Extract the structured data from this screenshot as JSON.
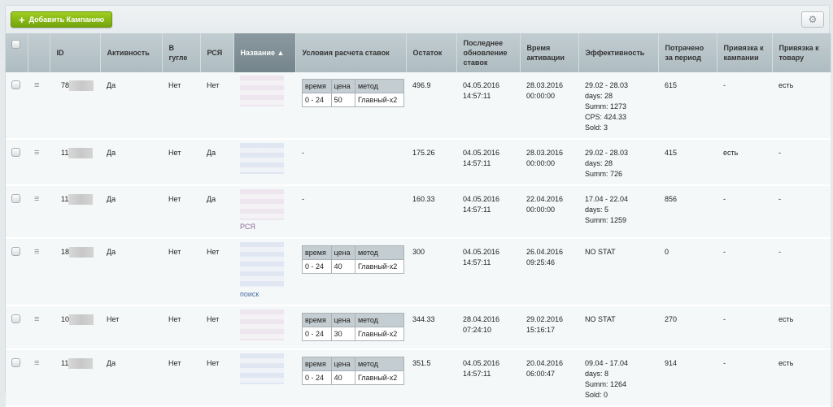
{
  "toolbar": {
    "add_label": "Добавить Кампанию",
    "add_icon": "plus-icon",
    "settings_icon": "gear-icon"
  },
  "columns": [
    "",
    "",
    "ID",
    "Активность",
    "В гугле",
    "РСЯ",
    "Название",
    "Условия расчета ставок",
    "Остаток",
    "Последнее обновление ставок",
    "Время активации",
    "Эффективность",
    "Потрачено за период",
    "Привязка к кампании",
    "Привязка к товару"
  ],
  "sorted_column": "Название",
  "sort_indicator": "▲",
  "bid_headers": [
    "время",
    "цена",
    "метод"
  ],
  "rows": [
    {
      "id": "78",
      "active": "Да",
      "google": "Нет",
      "rsya": "Нет",
      "name_sub": "",
      "bid": [
        "0 - 24",
        "50",
        "Главный-x2"
      ],
      "rest": "496.9",
      "updated": [
        "04.05.2016",
        "14:57:11"
      ],
      "activated": [
        "28.03.2016",
        "00:00:00"
      ],
      "eff": [
        "29.02 - 28.03",
        "days: 28",
        "Summ: 1273",
        "CPS: 424.33",
        "Sold: 3"
      ],
      "spent": "615",
      "link_campaign": "-",
      "link_product": "есть"
    },
    {
      "id": "11",
      "active": "Да",
      "google": "Нет",
      "rsya": "Да",
      "name_sub": "",
      "bid": null,
      "bid_text": "-",
      "rest": "175.26",
      "updated": [
        "04.05.2016",
        "14:57:11"
      ],
      "activated": [
        "28.03.2016",
        "00:00:00"
      ],
      "eff": [
        "29.02 - 28.03",
        "days: 28",
        "Summ: 726"
      ],
      "spent": "415",
      "link_campaign": "есть",
      "link_product": "-"
    },
    {
      "id": "11",
      "active": "Да",
      "google": "Нет",
      "rsya": "Да",
      "name_sub": "РСЯ",
      "bid": null,
      "bid_text": "-",
      "rest": "160.33",
      "updated": [
        "04.05.2016",
        "14:57:11"
      ],
      "activated": [
        "22.04.2016",
        "00:00:00"
      ],
      "eff": [
        "17.04 - 22.04",
        "days: 5",
        "Summ: 1259"
      ],
      "spent": "856",
      "link_campaign": "-",
      "link_product": "-"
    },
    {
      "id": "18",
      "active": "Да",
      "google": "Нет",
      "rsya": "Нет",
      "name_sub": "поиск",
      "bid": [
        "0 - 24",
        "40",
        "Главный-x2"
      ],
      "rest": "300",
      "updated": [
        "04.05.2016",
        "14:57:11"
      ],
      "activated": [
        "26.04.2016",
        "09:25:46"
      ],
      "eff": [
        "NO STAT"
      ],
      "spent": "0",
      "link_campaign": "-",
      "link_product": "-"
    },
    {
      "id": "10",
      "active": "Нет",
      "google": "Нет",
      "rsya": "Нет",
      "name_sub": "",
      "bid": [
        "0 - 24",
        "30",
        "Главный-x2"
      ],
      "rest": "344.33",
      "updated": [
        "28.04.2016",
        "07:24:10"
      ],
      "activated": [
        "29.02.2016",
        "15:16:17"
      ],
      "eff": [
        "NO STAT"
      ],
      "spent": "270",
      "link_campaign": "-",
      "link_product": "есть"
    },
    {
      "id": "11",
      "active": "Да",
      "google": "Нет",
      "rsya": "Нет",
      "name_sub": "",
      "bid": [
        "0 - 24",
        "40",
        "Главный-x2"
      ],
      "rest": "351.5",
      "updated": [
        "04.05.2016",
        "14:57:11"
      ],
      "activated": [
        "20.04.2016",
        "06:00:47"
      ],
      "eff": [
        "09.04 - 17.04",
        "days: 8",
        "Summ: 1264",
        "Sold: 0"
      ],
      "spent": "914",
      "link_campaign": "-",
      "link_product": "есть"
    }
  ]
}
